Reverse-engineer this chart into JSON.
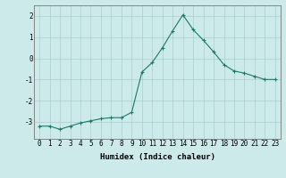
{
  "x": [
    0,
    1,
    2,
    3,
    4,
    5,
    6,
    7,
    8,
    9,
    10,
    11,
    12,
    13,
    14,
    15,
    16,
    17,
    18,
    19,
    20,
    21,
    22,
    23
  ],
  "y": [
    -3.2,
    -3.2,
    -3.35,
    -3.2,
    -3.05,
    -2.95,
    -2.85,
    -2.8,
    -2.8,
    -2.55,
    -0.65,
    -0.2,
    0.5,
    1.3,
    2.05,
    1.35,
    0.85,
    0.3,
    -0.3,
    -0.6,
    -0.7,
    -0.85,
    -1.0,
    -1.0
  ],
  "line_color": "#1a7a6a",
  "marker": "+",
  "marker_size": 3,
  "marker_linewidth": 0.8,
  "background_color": "#cceaea",
  "grid_color": "#aacece",
  "xlabel": "Humidex (Indice chaleur)",
  "xlim": [
    -0.5,
    23.5
  ],
  "ylim": [
    -3.8,
    2.5
  ],
  "yticks": [
    -3,
    -2,
    -1,
    0,
    1,
    2
  ],
  "xtick_labels": [
    "0",
    "1",
    "2",
    "3",
    "4",
    "5",
    "6",
    "7",
    "8",
    "9",
    "10",
    "11",
    "12",
    "13",
    "14",
    "15",
    "16",
    "17",
    "18",
    "19",
    "20",
    "21",
    "22",
    "23"
  ],
  "label_fontsize": 6.5,
  "tick_fontsize": 5.5
}
